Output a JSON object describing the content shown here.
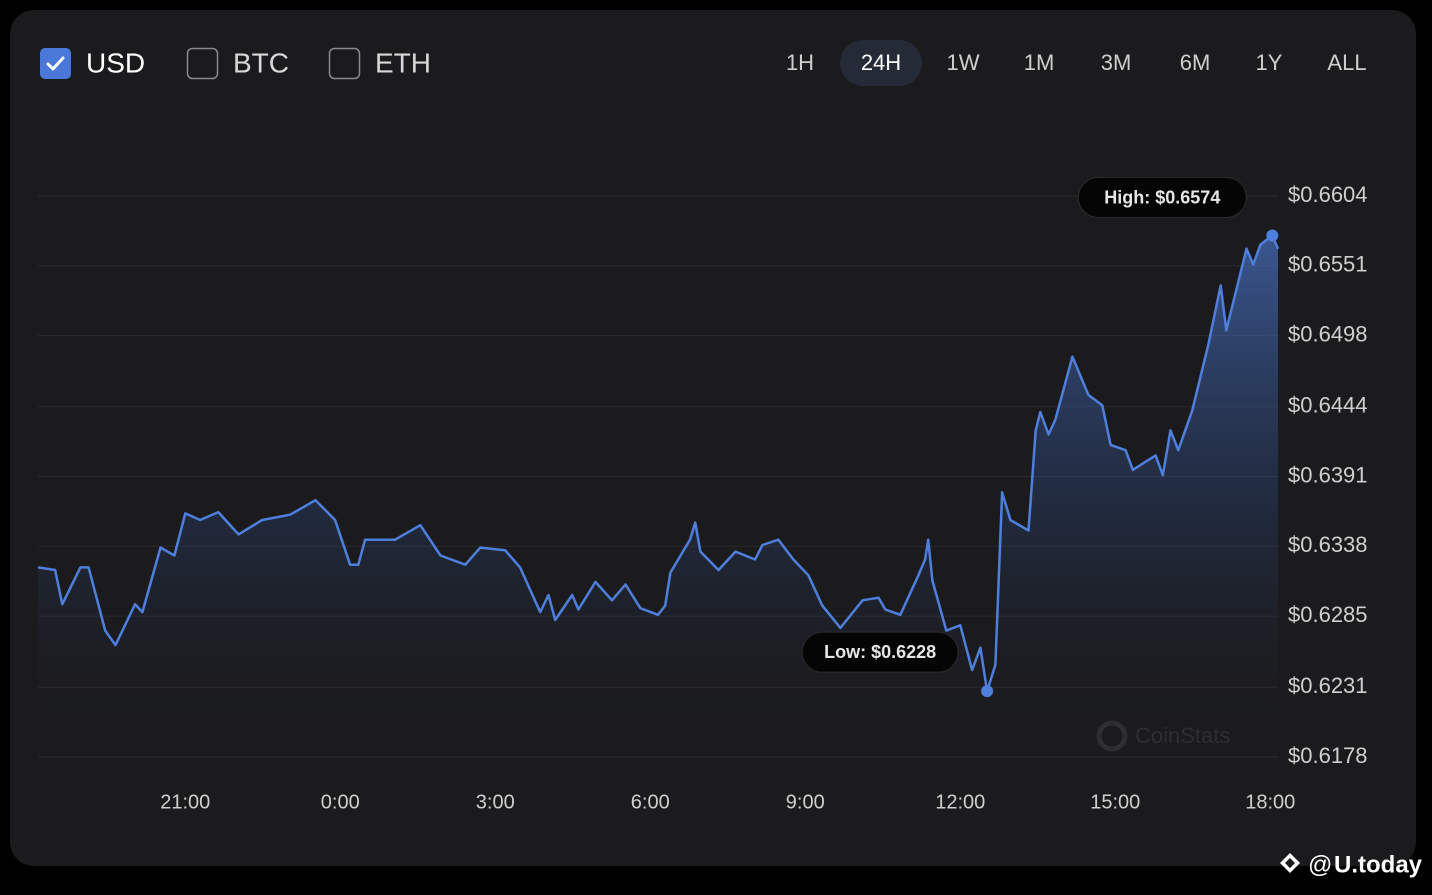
{
  "controls": {
    "currencies": [
      {
        "label": "USD",
        "checked": true
      },
      {
        "label": "BTC",
        "checked": false
      },
      {
        "label": "ETH",
        "checked": false
      }
    ],
    "ranges": [
      "1H",
      "24H",
      "1W",
      "1M",
      "3M",
      "6M",
      "1Y",
      "ALL"
    ],
    "selected_range": "24H"
  },
  "watermark": "CoinStats",
  "brand": "U.today",
  "brand_prefix": "@",
  "chart_data": {
    "type": "line",
    "x": [
      18.15,
      18.48,
      18.62,
      18.97,
      19.13,
      19.45,
      19.65,
      20.03,
      20.17,
      20.52,
      20.79,
      21.0,
      21.29,
      21.64,
      22.03,
      22.49,
      23.03,
      23.52,
      23.9,
      24.19,
      24.35,
      24.48,
      25.06,
      25.55,
      25.94,
      26.42,
      26.71,
      27.19,
      27.48,
      27.87,
      28.03,
      28.16,
      28.49,
      28.61,
      28.94,
      29.26,
      29.52,
      29.81,
      30.15,
      30.29,
      30.39,
      30.77,
      30.87,
      30.97,
      31.32,
      31.65,
      32.03,
      32.17,
      32.48,
      32.77,
      33.06,
      33.33,
      33.68,
      34.11,
      34.42,
      34.55,
      34.84,
      35.19,
      35.32,
      35.38,
      35.46,
      35.73,
      36.0,
      36.23,
      36.39,
      36.52,
      36.68,
      36.81,
      36.97,
      37.32,
      37.46,
      37.55,
      37.71,
      37.84,
      38.17,
      38.48,
      38.75,
      38.91,
      39.2,
      39.34,
      39.78,
      39.92,
      40.07,
      40.22,
      40.49,
      40.8,
      41.04,
      41.15,
      41.54,
      41.67,
      41.81,
      42.04,
      42.15
    ],
    "series": [
      {
        "name": "USD",
        "color": "#4f7fdc",
        "values": [
          0.6322,
          0.632,
          0.6294,
          0.6322,
          0.6322,
          0.6274,
          0.6263,
          0.6294,
          0.6288,
          0.6337,
          0.6331,
          0.6363,
          0.6358,
          0.6364,
          0.6347,
          0.6358,
          0.6362,
          0.6373,
          0.6358,
          0.6324,
          0.6324,
          0.6343,
          0.6343,
          0.6354,
          0.6331,
          0.6324,
          0.6337,
          0.6335,
          0.6322,
          0.6288,
          0.6301,
          0.6282,
          0.6301,
          0.629,
          0.6311,
          0.6297,
          0.6309,
          0.6291,
          0.6286,
          0.6293,
          0.6318,
          0.6343,
          0.6356,
          0.6334,
          0.632,
          0.6334,
          0.6328,
          0.6339,
          0.6343,
          0.6328,
          0.6316,
          0.6293,
          0.6276,
          0.6297,
          0.6299,
          0.629,
          0.6286,
          0.6316,
          0.6328,
          0.6343,
          0.6312,
          0.6274,
          0.6278,
          0.6244,
          0.6261,
          0.6228,
          0.6248,
          0.6379,
          0.6358,
          0.635,
          0.6426,
          0.644,
          0.6423,
          0.6434,
          0.6482,
          0.6453,
          0.6445,
          0.6415,
          0.6411,
          0.6396,
          0.6407,
          0.6392,
          0.6426,
          0.6411,
          0.6441,
          0.6491,
          0.6536,
          0.6502,
          0.6564,
          0.6552,
          0.6567,
          0.6574,
          0.6564
        ]
      }
    ],
    "xlim": [
      18.15,
      42.15
    ],
    "xticks": [
      {
        "value": 21,
        "label": "21:00"
      },
      {
        "value": 24,
        "label": "0:00"
      },
      {
        "value": 27,
        "label": "3:00"
      },
      {
        "value": 30,
        "label": "6:00"
      },
      {
        "value": 33,
        "label": "9:00"
      },
      {
        "value": 36,
        "label": "12:00"
      },
      {
        "value": 39,
        "label": "15:00"
      },
      {
        "value": 42,
        "label": "18:00"
      }
    ],
    "ylim": [
      0.6178,
      0.6604
    ],
    "yticks": [
      {
        "value": 0.6178,
        "label": "$0.6178"
      },
      {
        "value": 0.6231,
        "label": "$0.6231"
      },
      {
        "value": 0.6285,
        "label": "$0.6285"
      },
      {
        "value": 0.6338,
        "label": "$0.6338"
      },
      {
        "value": 0.6391,
        "label": "$0.6391"
      },
      {
        "value": 0.6444,
        "label": "$0.6444"
      },
      {
        "value": 0.6498,
        "label": "$0.6498"
      },
      {
        "value": 0.6551,
        "label": "$0.6551"
      },
      {
        "value": 0.6604,
        "label": "$0.6604"
      }
    ],
    "grid": true,
    "annotations": {
      "high": "High: $0.6574",
      "low": "Low: $0.6228"
    }
  }
}
